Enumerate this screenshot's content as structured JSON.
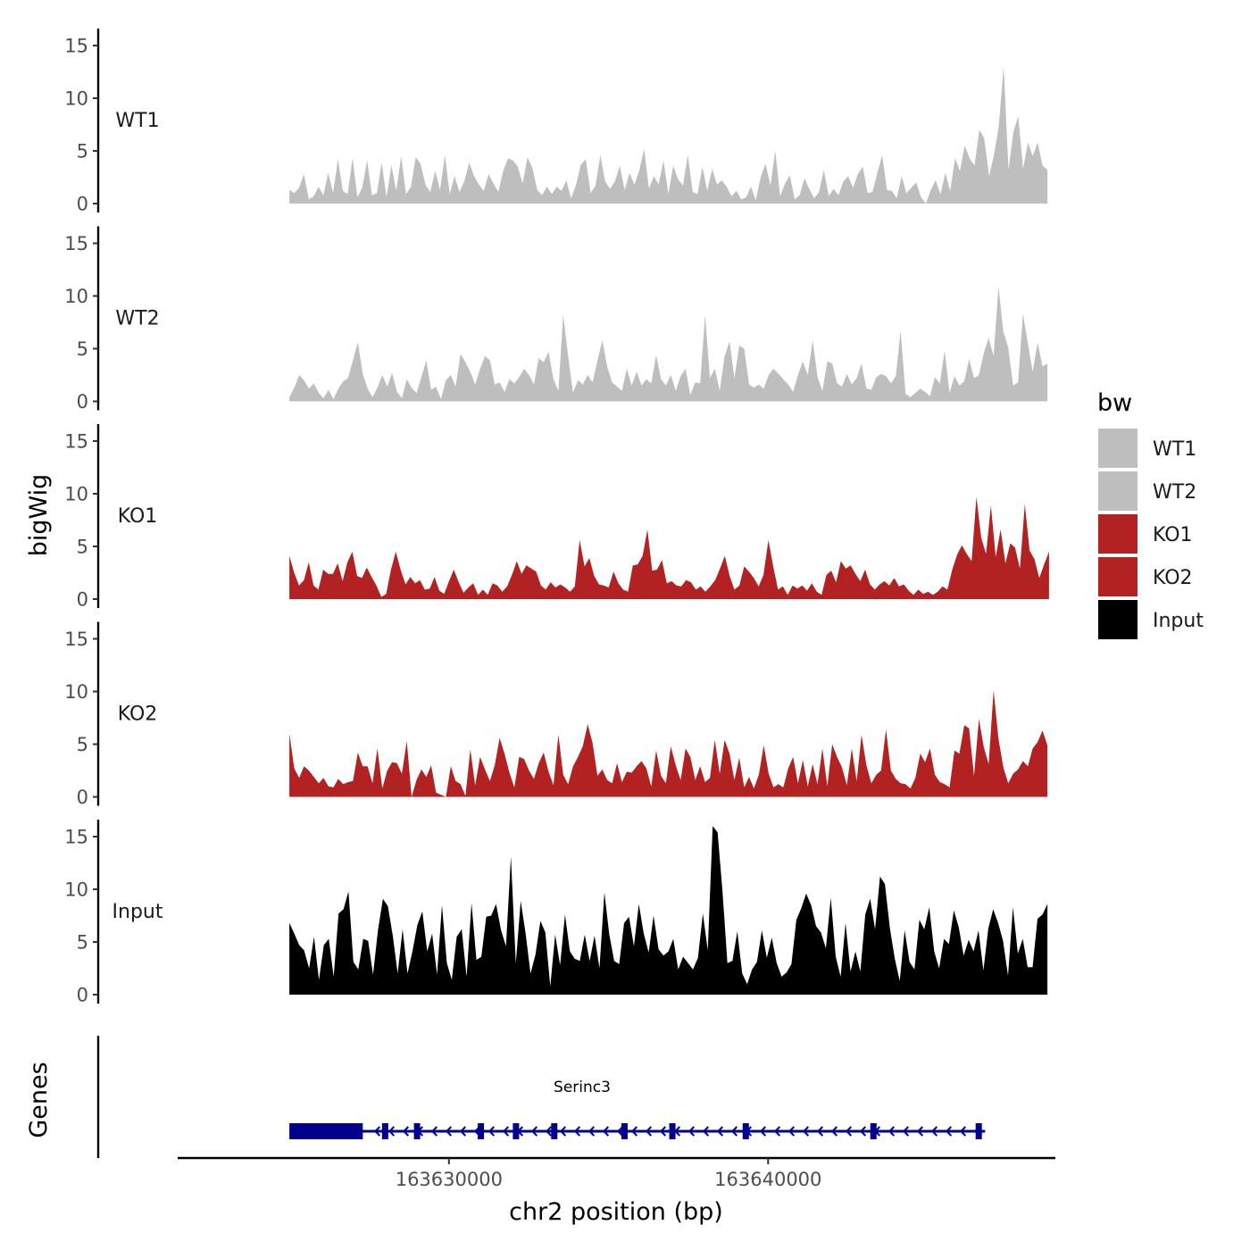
{
  "chart_data": {
    "type": "area",
    "title": "",
    "xlabel": "chr2 position (bp)",
    "ylabel": "bigWig",
    "genes_label": "Genes",
    "xlim": [
      163621500,
      163649000
    ],
    "x_ticks": [
      163630000,
      163640000
    ],
    "x_tick_labels": [
      "163630000",
      "163640000"
    ],
    "ylim": [
      0,
      16
    ],
    "y_ticks": [
      0,
      5,
      10,
      15
    ],
    "y_tick_labels": [
      "0",
      "5",
      "10",
      "15"
    ],
    "legend": {
      "title": "bw",
      "position": "right",
      "entries": [
        {
          "label": "WT1",
          "color": "#bebebe"
        },
        {
          "label": "WT2",
          "color": "#bebebe"
        },
        {
          "label": "KO1",
          "color": "#b22222"
        },
        {
          "label": "KO2",
          "color": "#b22222"
        },
        {
          "label": "Input",
          "color": "#000000"
        }
      ]
    },
    "series": [
      {
        "name": "WT1",
        "color": "#bebebe",
        "x_start": 163625000,
        "x_end": 163648750,
        "values": [
          1.3,
          1.0,
          1.5,
          2.8,
          0.4,
          0.7,
          1.6,
          0.8,
          2.9,
          1.0,
          4.2,
          1.2,
          0.9,
          4.3,
          0.6,
          1.5,
          4.1,
          0.8,
          1.0,
          3.9,
          0.6,
          3.6,
          1.2,
          4.5,
          0.9,
          1.6,
          4.4,
          3.8,
          1.8,
          1.1,
          3.1,
          1.3,
          4.6,
          0.9,
          2.6,
          1.1,
          2.1,
          3.9,
          2.6,
          1.8,
          1.2,
          2.8,
          1.9,
          1.1,
          3.1,
          4.3,
          4.1,
          3.5,
          1.9,
          4.4,
          3.4,
          1.3,
          0.8,
          1.6,
          0.9,
          1.6,
          1.2,
          2.2,
          0.5,
          1.8,
          3.7,
          4.2,
          1.0,
          1.7,
          4.6,
          2.1,
          1.4,
          2.1,
          3.6,
          1.3,
          2.9,
          1.8,
          3.1,
          5.2,
          1.4,
          2.6,
          1.8,
          4.1,
          0.9,
          3.6,
          2.3,
          1.7,
          4.6,
          1.1,
          0.9,
          3.5,
          1.2,
          3.3,
          1.8,
          2.2,
          1.6,
          0.7,
          1.2,
          0.4,
          0.6,
          1.6,
          0.3,
          2.5,
          3.8,
          1.7,
          5.0,
          0.7,
          1.9,
          2.7,
          0.4,
          0.8,
          2.4,
          1.4,
          0.5,
          1.1,
          3.2,
          0.7,
          1.4,
          0.8,
          2.1,
          2.6,
          1.5,
          2.8,
          3.5,
          1.0,
          1.1,
          2.9,
          4.6,
          1.3,
          1.2,
          0.5,
          2.6,
          1.0,
          1.5,
          2.0,
          0.6,
          0.0,
          1.3,
          2.2,
          0.9,
          2.9,
          1.2,
          4.3,
          3.1,
          5.5,
          4.3,
          3.6,
          7.0,
          6.2,
          2.6,
          4.6,
          7.3,
          13.0,
          3.2,
          6.8,
          8.3,
          3.3,
          5.8,
          4.5,
          5.8,
          3.6,
          3.2
        ]
      },
      {
        "name": "WT2",
        "color": "#bebebe",
        "x_start": 163625000,
        "x_end": 163648750,
        "values": [
          0.4,
          1.3,
          2.5,
          2.0,
          1.2,
          1.7,
          0.8,
          0.3,
          1.1,
          0.2,
          1.2,
          1.9,
          2.2,
          3.9,
          5.6,
          2.6,
          1.2,
          0.4,
          1.3,
          2.5,
          1.4,
          2.7,
          0.9,
          0.3,
          2.1,
          1.3,
          0.8,
          2.3,
          3.9,
          1.1,
          1.4,
          0.2,
          2.0,
          2.5,
          1.4,
          4.5,
          3.7,
          2.8,
          1.6,
          3.1,
          4.3,
          3.9,
          1.6,
          1.8,
          0.9,
          2.1,
          1.7,
          2.3,
          3.1,
          2.5,
          1.6,
          4.1,
          3.7,
          4.7,
          2.1,
          1.0,
          8.2,
          4.3,
          0.8,
          2.0,
          1.6,
          2.5,
          1.8,
          3.9,
          5.8,
          3.3,
          1.8,
          1.4,
          1.0,
          3.1,
          1.5,
          2.8,
          1.5,
          2.1,
          1.7,
          4.4,
          2.1,
          1.5,
          2.5,
          1.0,
          2.4,
          3.1,
          0.6,
          1.8,
          1.7,
          8.2,
          2.2,
          3.1,
          1.0,
          4.3,
          5.7,
          2.2,
          5.3,
          5.0,
          1.6,
          1.3,
          1.6,
          1.2,
          2.5,
          3.1,
          2.6,
          2.1,
          1.6,
          0.9,
          2.5,
          3.8,
          2.5,
          5.8,
          2.3,
          1.0,
          3.8,
          3.6,
          1.7,
          1.4,
          2.6,
          1.6,
          2.2,
          3.6,
          1.2,
          1.1,
          2.3,
          2.6,
          2.4,
          1.7,
          2.4,
          6.7,
          0.7,
          0.4,
          0.8,
          1.2,
          0.9,
          0.5,
          2.3,
          1.7,
          4.8,
          0.8,
          2.4,
          1.5,
          1.9,
          4.0,
          2.2,
          2.5,
          4.6,
          6.0,
          4.3,
          10.9,
          6.6,
          5.1,
          1.5,
          1.8,
          8.3,
          5.5,
          2.8,
          5.6,
          3.3,
          3.6
        ]
      },
      {
        "name": "KO1",
        "color": "#b22222",
        "x_start": 163625000,
        "x_end": 163648800,
        "values": [
          4.1,
          2.5,
          1.3,
          1.8,
          3.5,
          1.3,
          0.9,
          2.8,
          2.4,
          2.4,
          3.4,
          1.7,
          3.5,
          4.5,
          2.2,
          2.0,
          3.0,
          2.1,
          1.3,
          0.2,
          0.5,
          2.8,
          4.5,
          2.8,
          1.4,
          2.1,
          1.5,
          1.8,
          0.9,
          1.0,
          2.1,
          0.8,
          0.5,
          1.7,
          2.8,
          1.6,
          0.6,
          1.1,
          1.5,
          0.4,
          0.9,
          0.4,
          1.5,
          1.3,
          0.7,
          1.2,
          2.3,
          3.6,
          2.4,
          3.2,
          2.9,
          2.6,
          1.3,
          0.9,
          1.6,
          1.1,
          1.4,
          1.1,
          0.7,
          1.2,
          5.6,
          3.1,
          3.9,
          2.2,
          1.4,
          1.3,
          1.1,
          2.6,
          1.5,
          0.9,
          0.7,
          3.2,
          3.3,
          4.1,
          6.6,
          2.7,
          2.8,
          3.7,
          1.5,
          1.7,
          1.3,
          1.2,
          1.8,
          1.6,
          0.9,
          1.2,
          0.7,
          1.2,
          1.8,
          2.9,
          4.1,
          2.2,
          0.9,
          1.3,
          3.1,
          2.6,
          2.0,
          1.2,
          2.3,
          5.6,
          3.1,
          0.9,
          1.2,
          0.4,
          1.3,
          1.0,
          1.3,
          0.8,
          1.5,
          0.7,
          0.4,
          2.3,
          2.7,
          1.6,
          3.6,
          2.9,
          3.2,
          2.4,
          1.7,
          2.8,
          1.4,
          0.9,
          1.4,
          1.7,
          1.3,
          2.0,
          1.2,
          1.4,
          0.8,
          0.4,
          0.9,
          0.5,
          0.7,
          0.4,
          0.7,
          1.2,
          0.9,
          2.8,
          4.2,
          5.1,
          4.3,
          3.6,
          9.7,
          5.8,
          4.3,
          8.9,
          4.0,
          6.6,
          3.4,
          5.3,
          4.9,
          2.9,
          9.0,
          4.6,
          3.8,
          2.0,
          3.3,
          4.5
        ]
      },
      {
        "name": "KO2",
        "color": "#b22222",
        "x_start": 163625000,
        "x_end": 163648750,
        "values": [
          6.0,
          2.7,
          1.8,
          2.9,
          2.5,
          1.9,
          1.3,
          1.8,
          1.0,
          0.9,
          1.7,
          1.2,
          1.4,
          1.5,
          4.2,
          2.9,
          2.9,
          1.3,
          4.6,
          0.8,
          2.5,
          3.3,
          3.2,
          2.2,
          5.3,
          0.0,
          1.6,
          2.6,
          1.9,
          3.0,
          0.4,
          0.2,
          0.0,
          2.9,
          1.5,
          1.2,
          0.1,
          4.5,
          1.1,
          3.8,
          2.6,
          1.5,
          3.0,
          5.6,
          4.1,
          2.3,
          0.9,
          3.8,
          3.6,
          2.5,
          1.7,
          3.2,
          4.2,
          2.4,
          1.1,
          5.9,
          2.1,
          1.2,
          2.9,
          3.8,
          4.8,
          6.9,
          5.1,
          2.0,
          2.6,
          1.6,
          1.3,
          3.2,
          1.4,
          2.4,
          2.3,
          2.9,
          3.4,
          2.7,
          1.0,
          4.4,
          2.0,
          1.3,
          4.8,
          3.0,
          1.6,
          4.6,
          3.8,
          1.6,
          2.9,
          1.4,
          1.8,
          5.4,
          2.2,
          5.4,
          4.1,
          1.6,
          3.7,
          0.9,
          1.9,
          0.8,
          2.1,
          4.9,
          2.2,
          0.9,
          1.2,
          0.9,
          2.7,
          3.8,
          1.3,
          3.5,
          1.0,
          3.1,
          1.2,
          4.6,
          1.0,
          5.0,
          3.8,
          2.8,
          1.1,
          4.6,
          1.5,
          5.9,
          3.0,
          1.3,
          2.1,
          2.5,
          6.4,
          2.5,
          1.7,
          1.3,
          1.2,
          0.8,
          1.8,
          4.1,
          3.3,
          4.6,
          2.1,
          1.4,
          1.2,
          0.9,
          4.4,
          4.1,
          6.8,
          6.5,
          2.0,
          7.4,
          4.7,
          3.1,
          10.1,
          5.5,
          2.8,
          1.3,
          2.2,
          2.6,
          3.4,
          2.9,
          4.6,
          5.2,
          6.3,
          4.9
        ]
      },
      {
        "name": "Input",
        "color": "#000000",
        "x_start": 163625000,
        "x_end": 163648750,
        "values": [
          6.8,
          5.8,
          4.7,
          4.2,
          2.5,
          5.5,
          1.4,
          4.7,
          5.3,
          1.7,
          7.7,
          8.1,
          9.8,
          3.1,
          2.4,
          5.3,
          5.1,
          1.9,
          6.1,
          9.1,
          8.4,
          5.6,
          2.0,
          6.2,
          2.0,
          4.1,
          6.6,
          7.9,
          4.1,
          5.8,
          1.9,
          8.5,
          3.0,
          1.4,
          5.5,
          6.2,
          1.7,
          8.7,
          3.3,
          3.6,
          7.4,
          7.5,
          8.6,
          6.1,
          4.6,
          13.1,
          3.0,
          8.9,
          5.8,
          2.0,
          3.8,
          7.0,
          5.9,
          0.8,
          5.7,
          2.8,
          7.6,
          4.1,
          3.4,
          3.2,
          5.7,
          3.2,
          5.6,
          2.5,
          9.7,
          5.7,
          3.2,
          2.9,
          6.8,
          7.4,
          4.6,
          8.6,
          5.8,
          4.0,
          7.5,
          4.3,
          3.7,
          4.1,
          5.3,
          2.4,
          3.6,
          3.0,
          2.4,
          3.5,
          7.7,
          4.2,
          16.0,
          15.4,
          9.8,
          3.0,
          3.2,
          6.0,
          2.0,
          1.0,
          2.4,
          3.1,
          6.1,
          3.5,
          5.4,
          3.0,
          1.7,
          2.1,
          2.9,
          7.1,
          8.2,
          9.6,
          8.5,
          6.5,
          5.9,
          4.4,
          9.2,
          3.6,
          1.7,
          6.8,
          2.2,
          4.1,
          2.2,
          7.6,
          9.1,
          6.2,
          11.2,
          10.5,
          6.3,
          3.4,
          1.3,
          6.1,
          3.1,
          2.4,
          7.1,
          6.2,
          8.3,
          4.1,
          2.5,
          5.3,
          4.8,
          8.0,
          6.4,
          3.7,
          5.2,
          4.1,
          6.1,
          2.3,
          6.3,
          8.1,
          6.8,
          5.1,
          1.8,
          8.3,
          3.9,
          5.3,
          2.6,
          2.6,
          7.2,
          7.6,
          8.6
        ]
      }
    ],
    "genes": [
      {
        "name": "Serinc3",
        "strand": "-",
        "start": 163625000,
        "end": 163646800,
        "thick_block": [
          163625000,
          163627300
        ],
        "exons": [
          163628000,
          163629000,
          163631000,
          163632100,
          163633300,
          163635500,
          163637000,
          163639300,
          163643300,
          163646600
        ]
      }
    ]
  }
}
